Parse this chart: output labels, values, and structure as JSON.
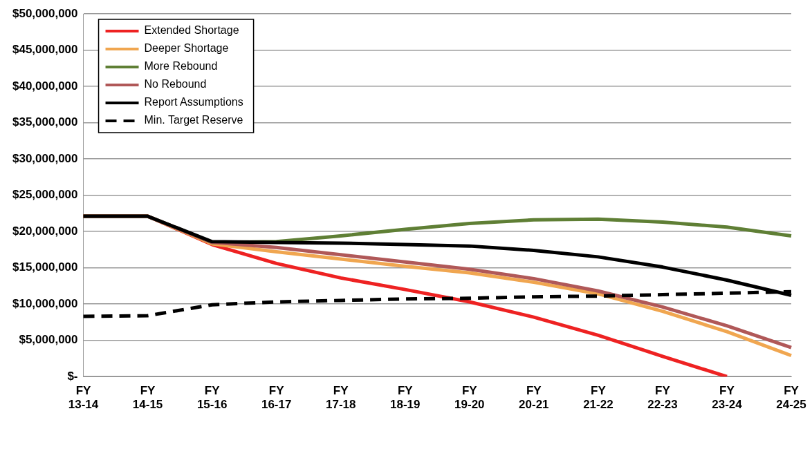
{
  "chart_data": {
    "type": "line",
    "categories": [
      "FY 13-14",
      "FY 14-15",
      "FY 15-16",
      "FY 16-17",
      "FY 17-18",
      "FY 18-19",
      "FY 19-20",
      "FY 20-21",
      "FY 21-22",
      "FY 22-23",
      "FY 23-24",
      "FY 24-25"
    ],
    "series": [
      {
        "name": "Extended Shortage",
        "color": "#ee2222",
        "values": [
          22100000,
          22100000,
          18200000,
          15600000,
          13600000,
          12000000,
          10300000,
          8200000,
          5700000,
          2800000,
          0,
          null
        ]
      },
      {
        "name": "Deeper Shortage",
        "color": "#f0a650",
        "values": [
          22100000,
          22100000,
          18300000,
          17200000,
          16200000,
          15200000,
          14300000,
          13000000,
          11400000,
          9000000,
          6200000,
          2900000
        ]
      },
      {
        "name": "More Rebound",
        "color": "#5f7f35",
        "values": [
          22100000,
          22100000,
          18500000,
          18600000,
          19400000,
          20300000,
          21100000,
          21600000,
          21700000,
          21300000,
          20600000,
          19400000
        ]
      },
      {
        "name": "No Rebound",
        "color": "#b05858",
        "values": [
          22100000,
          22100000,
          18500000,
          17800000,
          16800000,
          15800000,
          14800000,
          13500000,
          11800000,
          9600000,
          7000000,
          4000000
        ]
      },
      {
        "name": "Report Assumptions",
        "color": "#000000",
        "values": [
          22100000,
          22100000,
          18600000,
          18500000,
          18400000,
          18200000,
          18000000,
          17400000,
          16500000,
          15100000,
          13300000,
          11200000
        ]
      },
      {
        "name": "Min. Target Reserve",
        "color": "#000000",
        "line_style": "dashed",
        "values": [
          8300000,
          8400000,
          9900000,
          10300000,
          10500000,
          10700000,
          10800000,
          11000000,
          11100000,
          11300000,
          11500000,
          11700000
        ]
      }
    ],
    "ylim": [
      0,
      50000000
    ],
    "yticks": [
      {
        "value": 0,
        "label": "$-"
      },
      {
        "value": 5000000,
        "label": "$5,000,000"
      },
      {
        "value": 10000000,
        "label": "$10,000,000"
      },
      {
        "value": 15000000,
        "label": "$15,000,000"
      },
      {
        "value": 20000000,
        "label": "$20,000,000"
      },
      {
        "value": 25000000,
        "label": "$25,000,000"
      },
      {
        "value": 30000000,
        "label": "$30,000,000"
      },
      {
        "value": 35000000,
        "label": "$35,000,000"
      },
      {
        "value": 40000000,
        "label": "$40,000,000"
      },
      {
        "value": 45000000,
        "label": "$45,000,000"
      },
      {
        "value": 50000000,
        "label": "$50,000,000"
      }
    ],
    "grid": "y",
    "legend": "top left",
    "marker": "none",
    "line_style": "solid"
  }
}
